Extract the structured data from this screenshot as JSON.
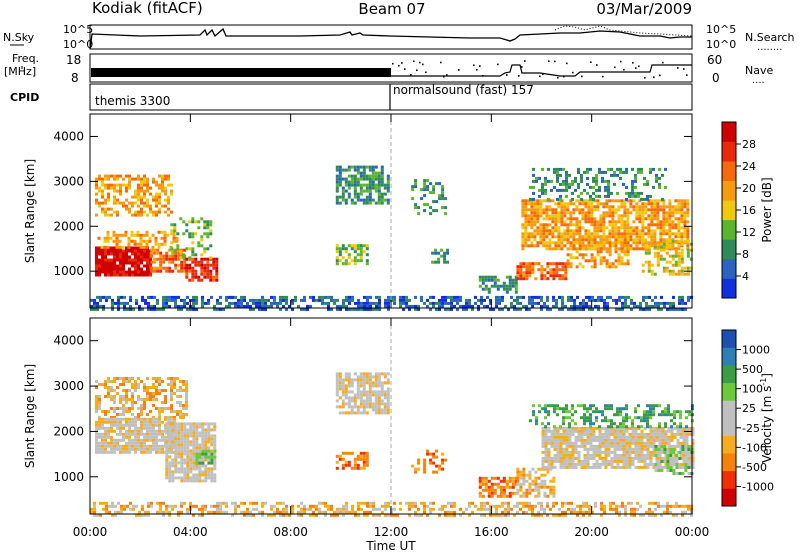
{
  "header": {
    "station": "Kodiak (fitACF)",
    "beam": "Beam 07",
    "date": "03/Mar/2009"
  },
  "noise_panel": {
    "left_label": "N.Sky",
    "right_label": "N.Search",
    "right_label_dots": "........",
    "left_ticks": [
      "10^5",
      "10^0"
    ],
    "right_ticks": [
      "10^5",
      "10^0"
    ]
  },
  "freq_panel": {
    "left_label_1": "Freq.",
    "left_label_2": "[MHz]",
    "right_label": "Nave",
    "right_label_dots": "....",
    "left_ticks": [
      "18",
      "8"
    ],
    "right_ticks": [
      "60",
      "0"
    ]
  },
  "cpid_panel": {
    "label": "CPID",
    "modes": [
      {
        "name": "themis 3300",
        "start_hour": 0
      },
      {
        "name": "normalsound (fast) 157",
        "start_hour": 12
      }
    ]
  },
  "colors": {
    "power": [
      "#1030e0",
      "#2a64c0",
      "#2e8b57",
      "#5ab42d",
      "#f0c810",
      "#f59b10",
      "#f56a0a",
      "#e82a0a",
      "#d00000"
    ],
    "velocity": [
      "#d00000",
      "#f03000",
      "#f5820a",
      "#f5ac1e",
      "#c0c0c0",
      "#c0c0c0",
      "#6cc83c",
      "#3c9c46",
      "#2e7fb4",
      "#1e50b4"
    ],
    "gray": "#c0c0c0"
  },
  "chart_data": [
    {
      "type": "heatmap",
      "title": "Power",
      "ylabel": "Slant Range [km]",
      "xlabel": "",
      "x_ticks": [
        "00:00",
        "04:00",
        "08:00",
        "12:00",
        "16:00",
        "20:00",
        "00:00"
      ],
      "y_ticks": [
        "1000",
        "2000",
        "3000",
        "4000"
      ],
      "xlim": [
        0,
        24
      ],
      "ylim": [
        180,
        4500
      ],
      "colorbar_label": "Power [dB]",
      "colorbar_ticks": [
        "4",
        "8",
        "12",
        "16",
        "20",
        "24",
        "28"
      ],
      "colorbar_range": [
        0,
        30
      ],
      "blobs": [
        {
          "x": [
            0.2,
            2.4
          ],
          "y": [
            900,
            1550
          ],
          "level": 8,
          "density": 0.9
        },
        {
          "x": [
            2.4,
            3.8
          ],
          "y": [
            1000,
            1500
          ],
          "level": 6,
          "density": 0.75
        },
        {
          "x": [
            3.8,
            5.0
          ],
          "y": [
            820,
            1300
          ],
          "level": 7,
          "density": 0.8
        },
        {
          "x": [
            0.3,
            3.5
          ],
          "y": [
            1550,
            1900
          ],
          "level": 5,
          "density": 0.45
        },
        {
          "x": [
            3.2,
            4.8
          ],
          "y": [
            1300,
            2200
          ],
          "level": 3,
          "density": 0.35
        },
        {
          "x": [
            0.2,
            3.2
          ],
          "y": [
            2250,
            3150
          ],
          "level": 5,
          "density": 0.55
        },
        {
          "x": [
            9.8,
            11.9
          ],
          "y": [
            2500,
            3350
          ],
          "level": 2,
          "density": 0.65
        },
        {
          "x": [
            9.8,
            11.0
          ],
          "y": [
            1150,
            1600
          ],
          "level": 3,
          "density": 0.6
        },
        {
          "x": [
            12.8,
            14.2
          ],
          "y": [
            2300,
            3050
          ],
          "level": 2,
          "density": 0.35
        },
        {
          "x": [
            13.6,
            14.2
          ],
          "y": [
            1200,
            1500
          ],
          "level": 2,
          "density": 0.5
        },
        {
          "x": [
            15.5,
            17.0
          ],
          "y": [
            550,
            900
          ],
          "level": 2,
          "density": 0.7
        },
        {
          "x": [
            17.0,
            19.0
          ],
          "y": [
            850,
            1200
          ],
          "level": 6,
          "density": 0.8
        },
        {
          "x": [
            17.2,
            23.8
          ],
          "y": [
            1500,
            2600
          ],
          "level": 5,
          "density": 0.75
        },
        {
          "x": [
            19.0,
            21.5
          ],
          "y": [
            1100,
            1800
          ],
          "level": 5,
          "density": 0.55
        },
        {
          "x": [
            22.0,
            24.0
          ],
          "y": [
            950,
            1700
          ],
          "level": 4,
          "density": 0.5
        },
        {
          "x": [
            17.5,
            23.0
          ],
          "y": [
            2600,
            3300
          ],
          "level": 2,
          "density": 0.35
        },
        {
          "x": [
            0.0,
            24.0
          ],
          "y": [
            180,
            450
          ],
          "level": 1,
          "density": 0.55
        }
      ]
    },
    {
      "type": "heatmap",
      "title": "Velocity",
      "ylabel": "Slant Range [km]",
      "xlabel": "Time UT",
      "x_ticks": [
        "00:00",
        "04:00",
        "08:00",
        "12:00",
        "16:00",
        "20:00",
        "00:00"
      ],
      "y_ticks": [
        "1000",
        "2000",
        "3000",
        "4000"
      ],
      "xlim": [
        0,
        24
      ],
      "ylim": [
        180,
        4500
      ],
      "colorbar_label": "Velocity [m s^-1]",
      "colorbar_ticks": [
        "-1000",
        "-500",
        "-100",
        "-25",
        "25",
        "100",
        "500",
        "1000"
      ],
      "colorbar_range": [
        -1250,
        1250
      ],
      "blobs": [
        {
          "x": [
            0.2,
            3.8
          ],
          "y": [
            2300,
            3200
          ],
          "level": 3,
          "density": 0.55
        },
        {
          "x": [
            0.2,
            3.4
          ],
          "y": [
            1550,
            2300
          ],
          "level": 4,
          "density": 0.85
        },
        {
          "x": [
            3.0,
            5.0
          ],
          "y": [
            900,
            2200
          ],
          "level": 4,
          "density": 0.85
        },
        {
          "x": [
            4.2,
            5.0
          ],
          "y": [
            1300,
            1600
          ],
          "level": 6,
          "density": 0.7
        },
        {
          "x": [
            9.8,
            11.9
          ],
          "y": [
            2400,
            3300
          ],
          "level": 4,
          "density": 0.75
        },
        {
          "x": [
            9.8,
            11.0
          ],
          "y": [
            1200,
            1550
          ],
          "level": 2,
          "density": 0.6
        },
        {
          "x": [
            12.8,
            14.2
          ],
          "y": [
            1100,
            1600
          ],
          "level": 2,
          "density": 0.3
        },
        {
          "x": [
            15.5,
            17.0
          ],
          "y": [
            600,
            1000
          ],
          "level": 2,
          "density": 0.7
        },
        {
          "x": [
            17.0,
            18.5
          ],
          "y": [
            600,
            1200
          ],
          "level": 3,
          "density": 0.6
        },
        {
          "x": [
            18.0,
            24.0
          ],
          "y": [
            1200,
            2100
          ],
          "level": 4,
          "density": 0.85
        },
        {
          "x": [
            17.5,
            24.0
          ],
          "y": [
            2100,
            2600
          ],
          "level": 7,
          "density": 0.45
        },
        {
          "x": [
            22.5,
            24.0
          ],
          "y": [
            1100,
            1700
          ],
          "level": 6,
          "density": 0.55
        },
        {
          "x": [
            0.0,
            24.0
          ],
          "y": [
            180,
            450
          ],
          "level": 3,
          "density": 0.5
        }
      ]
    }
  ]
}
